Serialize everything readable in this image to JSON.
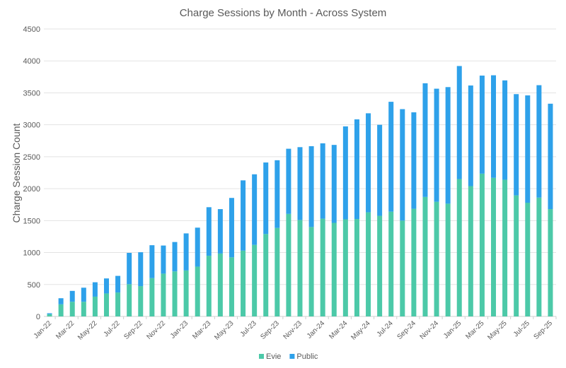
{
  "chart_data": {
    "type": "bar",
    "stacked": true,
    "title": "Charge Sessions by Month - Across System",
    "xlabel": "",
    "ylabel": "Charge Session Count",
    "ylim": [
      0,
      4500
    ],
    "yticks": [
      0,
      500,
      1000,
      1500,
      2000,
      2500,
      3000,
      3500,
      4000,
      4500
    ],
    "grid": true,
    "legend_position": "bottom",
    "categories": [
      "Jan-22",
      "Feb-22",
      "Mar-22",
      "Apr-22",
      "May-22",
      "Jun-22",
      "Jul-22",
      "Aug-22",
      "Sep-22",
      "Oct-22",
      "Nov-22",
      "Dec-22",
      "Jan-23",
      "Feb-23",
      "Mar-23",
      "Apr-23",
      "May-23",
      "Jun-23",
      "Jul-23",
      "Aug-23",
      "Sep-23",
      "Oct-23",
      "Nov-23",
      "Dec-23",
      "Jan-24",
      "Feb-24",
      "Mar-24",
      "Apr-24",
      "May-24",
      "Jun-24",
      "Jul-24",
      "Aug-24",
      "Sep-24",
      "Oct-24",
      "Nov-24",
      "Dec-24",
      "Jan-25",
      "Feb-25",
      "Mar-25",
      "Apr-25",
      "May-25",
      "Jun-25",
      "Jul-25",
      "Aug-25",
      "Sep-25"
    ],
    "series": [
      {
        "name": "Evie",
        "color": "#4cc9a8",
        "values": [
          35,
          190,
          230,
          230,
          310,
          360,
          375,
          505,
          475,
          600,
          670,
          705,
          720,
          780,
          950,
          985,
          925,
          1030,
          1120,
          1290,
          1385,
          1605,
          1510,
          1400,
          1530,
          1465,
          1520,
          1525,
          1630,
          1575,
          1640,
          1500,
          1685,
          1870,
          1795,
          1765,
          2150,
          2040,
          2235,
          2170,
          2140,
          1895,
          1780,
          1860,
          1680
        ]
      },
      {
        "name": "Public",
        "color": "#2ea1ea",
        "values": [
          15,
          95,
          170,
          220,
          225,
          235,
          260,
          490,
          530,
          515,
          440,
          460,
          580,
          610,
          760,
          695,
          930,
          1100,
          1105,
          1120,
          1060,
          1020,
          1140,
          1265,
          1180,
          1220,
          1455,
          1560,
          1550,
          1425,
          1720,
          1745,
          1510,
          1780,
          1770,
          1825,
          1770,
          1575,
          1535,
          1605,
          1555,
          1585,
          1680,
          1760,
          1650
        ]
      }
    ]
  }
}
